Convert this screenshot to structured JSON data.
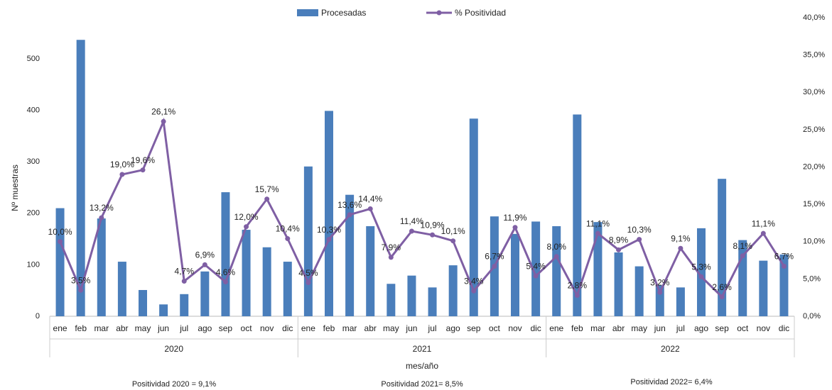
{
  "chart_data": {
    "type": "bar-line",
    "x_label": "mes/año",
    "y_label": "Nº muestras",
    "categories": [
      "ene",
      "feb",
      "mar",
      "abr",
      "may",
      "jun",
      "jul",
      "ago",
      "sep",
      "oct",
      "nov",
      "dic",
      "ene",
      "feb",
      "mar",
      "abr",
      "may",
      "jun",
      "jul",
      "ago",
      "sep",
      "oct",
      "nov",
      "dic",
      "ene",
      "feb",
      "mar",
      "abr",
      "may",
      "jun",
      "jul",
      "ago",
      "sep",
      "oct",
      "nov",
      "dic"
    ],
    "groups": [
      "2020",
      "2021",
      "2022"
    ],
    "series": [
      {
        "name": "Procesadas",
        "type": "bar",
        "color": "#4a7ebb",
        "values": [
          210,
          537,
          190,
          106,
          51,
          23,
          43,
          87,
          241,
          168,
          134,
          106,
          291,
          399,
          236,
          175,
          63,
          79,
          56,
          99,
          384,
          194,
          160,
          184,
          175,
          392,
          183,
          124,
          97,
          60,
          56,
          171,
          267,
          148,
          108,
          120
        ]
      },
      {
        "name": "% Positividad",
        "type": "line",
        "axis": "y2",
        "color": "#7f5fa4",
        "values": [
          10.0,
          3.5,
          13.2,
          19.0,
          19.6,
          26.1,
          4.7,
          6.9,
          4.6,
          12.0,
          15.7,
          10.4,
          4.5,
          10.3,
          13.6,
          14.4,
          7.9,
          11.4,
          10.9,
          10.1,
          3.4,
          6.7,
          11.9,
          5.4,
          8.0,
          2.8,
          11.1,
          8.9,
          10.3,
          3.2,
          9.1,
          5.3,
          2.6,
          8.1,
          11.1,
          6.7
        ],
        "value_labels": [
          "10,0%",
          "3,5%",
          "13,2%",
          "19,0%",
          "19,6%",
          "26,1%",
          "4,7%",
          "6,9%",
          "4,6%",
          "12,0%",
          "15,7%",
          "10,4%",
          "4,5%",
          "10,3%",
          "13,6%",
          "14,4%",
          "7,9%",
          "11,4%",
          "10,9%",
          "10,1%",
          "3,4%",
          "6,7%",
          "11,9%",
          "5,4%",
          "8,0%",
          "2,8%",
          "11,1%",
          "8,9%",
          "10,3%",
          "3,2%",
          "9,1%",
          "5,3%",
          "2,6%",
          "8,1%",
          "11,1%",
          "6,7%"
        ]
      }
    ],
    "ylim": [
      0,
      580
    ],
    "yticks": [
      0,
      100,
      200,
      300,
      400,
      500
    ],
    "y2lim": [
      0,
      40
    ],
    "y2ticks": [
      {
        "value": 0,
        "label": "0,0%"
      },
      {
        "value": 5,
        "label": "5,0%"
      },
      {
        "value": 10,
        "label": "10,0%"
      },
      {
        "value": 15,
        "label": "15,0%"
      },
      {
        "value": 20,
        "label": "20,0%"
      },
      {
        "value": 25,
        "label": "25,0%"
      },
      {
        "value": 30,
        "label": "30,0%"
      },
      {
        "value": 35,
        "label": "35,0%"
      },
      {
        "value": 40,
        "label": "40,0%"
      }
    ],
    "grid": false,
    "legend": "top",
    "annotations": [
      "Positividad 2020 = 9,1%",
      "Positividad 2021= 8,5%",
      "Positividad 2022= 6,4%"
    ]
  }
}
